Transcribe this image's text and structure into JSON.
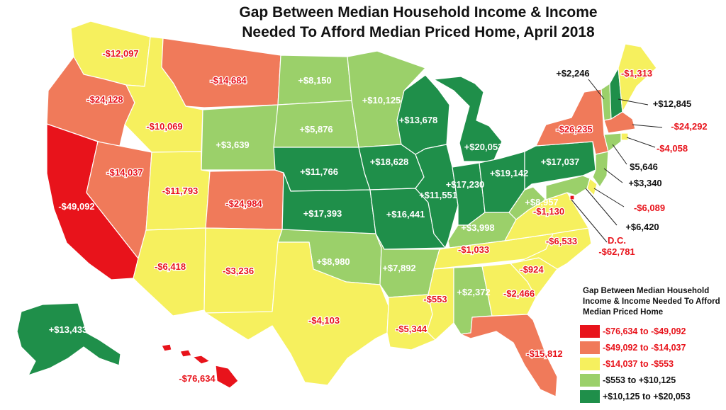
{
  "title_line1": "Gap Between Median Household Income & Income",
  "title_line2": "Needed To Afford Median Priced Home, April 2018",
  "colors": {
    "bin1": "#e8131b",
    "bin2": "#f07a5a",
    "bin3": "#f6f05e",
    "bin4": "#9bd06a",
    "bin5": "#1f8f4a"
  },
  "legend": {
    "title": "Gap Between Median Household Income & Income Needed To Afford Median Priced Home",
    "items": [
      {
        "label": "-$76,634 to -$49,092",
        "bin": "bin1"
      },
      {
        "label": "-$49,092 to -$14,037",
        "bin": "bin2"
      },
      {
        "label": "-$14,037 to -$553",
        "bin": "bin3"
      },
      {
        "label": "-$553 to +$10,125",
        "bin": "bin4"
      },
      {
        "label": "+$10,125 to +$20,053",
        "bin": "bin5"
      }
    ]
  },
  "states": [
    {
      "abbr": "WA",
      "value": "-$12,097",
      "bin": "bin3"
    },
    {
      "abbr": "OR",
      "value": "-$24,128",
      "bin": "bin2"
    },
    {
      "abbr": "CA",
      "value": "-$49,092",
      "bin": "bin1"
    },
    {
      "abbr": "NV",
      "value": "-$14,037",
      "bin": "bin2"
    },
    {
      "abbr": "ID",
      "value": "-$10,069",
      "bin": "bin3"
    },
    {
      "abbr": "MT",
      "value": "-$14,684",
      "bin": "bin2"
    },
    {
      "abbr": "WY",
      "value": "+$3,639",
      "bin": "bin4"
    },
    {
      "abbr": "UT",
      "value": "-$11,793",
      "bin": "bin3"
    },
    {
      "abbr": "CO",
      "value": "-$24,984",
      "bin": "bin2"
    },
    {
      "abbr": "AZ",
      "value": "-$6,418",
      "bin": "bin3"
    },
    {
      "abbr": "NM",
      "value": "-$3,236",
      "bin": "bin3"
    },
    {
      "abbr": "ND",
      "value": "+$8,150",
      "bin": "bin4"
    },
    {
      "abbr": "SD",
      "value": "+$5,876",
      "bin": "bin4"
    },
    {
      "abbr": "NE",
      "value": "+$11,766",
      "bin": "bin5"
    },
    {
      "abbr": "KS",
      "value": "+$17,393",
      "bin": "bin5"
    },
    {
      "abbr": "OK",
      "value": "+$8,980",
      "bin": "bin4"
    },
    {
      "abbr": "TX",
      "value": "-$4,103",
      "bin": "bin3"
    },
    {
      "abbr": "MN",
      "value": "+$10,125",
      "bin": "bin4"
    },
    {
      "abbr": "IA",
      "value": "+$18,628",
      "bin": "bin5"
    },
    {
      "abbr": "MO",
      "value": "+$16,441",
      "bin": "bin5"
    },
    {
      "abbr": "AR",
      "value": "+$7,892",
      "bin": "bin4"
    },
    {
      "abbr": "LA",
      "value": "-$5,344",
      "bin": "bin3"
    },
    {
      "abbr": "WI",
      "value": "+$13,678",
      "bin": "bin5"
    },
    {
      "abbr": "IL",
      "value": "+$11,551",
      "bin": "bin5"
    },
    {
      "abbr": "MI",
      "value": "+$20,053",
      "bin": "bin5"
    },
    {
      "abbr": "IN",
      "value": "+$17,230",
      "bin": "bin5"
    },
    {
      "abbr": "OH",
      "value": "+$19,142",
      "bin": "bin5"
    },
    {
      "abbr": "KY",
      "value": "+$3,998",
      "bin": "bin4"
    },
    {
      "abbr": "TN",
      "value": "-$1,033",
      "bin": "bin3"
    },
    {
      "abbr": "MS",
      "value": "-$553",
      "bin": "bin3"
    },
    {
      "abbr": "AL",
      "value": "+$2,372",
      "bin": "bin4"
    },
    {
      "abbr": "GA",
      "value": "-$2,466",
      "bin": "bin3"
    },
    {
      "abbr": "FL",
      "value": "-$15,812",
      "bin": "bin2"
    },
    {
      "abbr": "SC",
      "value": "-$924",
      "bin": "bin3"
    },
    {
      "abbr": "NC",
      "value": "-$6,533",
      "bin": "bin3"
    },
    {
      "abbr": "VA",
      "value": "-$1,130",
      "bin": "bin3"
    },
    {
      "abbr": "WV",
      "value": "+$8,957",
      "bin": "bin4"
    },
    {
      "abbr": "PA",
      "value": "+$17,037",
      "bin": "bin5"
    },
    {
      "abbr": "NY",
      "value": "-$26,235",
      "bin": "bin2"
    },
    {
      "abbr": "VT",
      "value": "+$2,246",
      "bin": "bin4"
    },
    {
      "abbr": "NH",
      "value": "+$12,845",
      "bin": "bin5"
    },
    {
      "abbr": "ME",
      "value": "-$1,313",
      "bin": "bin3"
    },
    {
      "abbr": "MA",
      "value": "-$24,292",
      "bin": "bin2"
    },
    {
      "abbr": "RI",
      "value": "-$4,058",
      "bin": "bin3"
    },
    {
      "abbr": "CT",
      "value": "$5,646",
      "bin": "bin4"
    },
    {
      "abbr": "NJ",
      "value": "+$3,340",
      "bin": "bin4"
    },
    {
      "abbr": "DE",
      "value": "-$6,089",
      "bin": "bin3"
    },
    {
      "abbr": "MD",
      "value": "+$6,420",
      "bin": "bin4"
    },
    {
      "abbr": "DC",
      "value": "-$62,781",
      "bin": "bin1",
      "name": "D.C."
    },
    {
      "abbr": "AK",
      "value": "+$13,433",
      "bin": "bin5"
    },
    {
      "abbr": "HI",
      "value": "-$76,634",
      "bin": "bin1"
    }
  ]
}
